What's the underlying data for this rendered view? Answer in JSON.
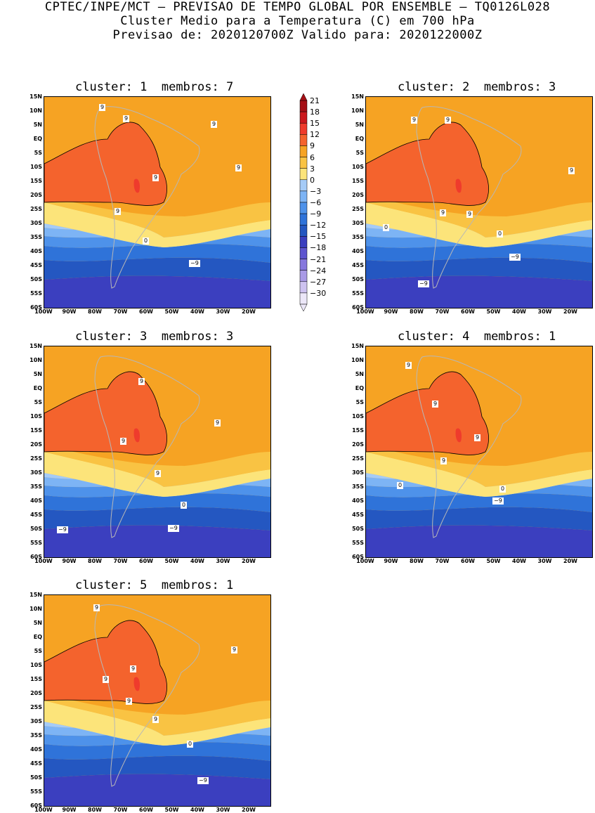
{
  "header": {
    "line1": "CPTEC/INPE/MCT — PREVISAO DE TEMPO GLOBAL POR ENSEMBLE — TQ0126L028",
    "line2": "Cluster Medio para a Temperatura (C) em 700 hPa",
    "line3": "Previsao de: 2020120700Z   Valido para: 2020122000Z"
  },
  "axes": {
    "y_ticks": [
      "15N",
      "10N",
      "5N",
      "EQ",
      "5S",
      "10S",
      "15S",
      "20S",
      "25S",
      "30S",
      "35S",
      "40S",
      "45S",
      "50S",
      "55S",
      "60S"
    ],
    "x_ticks": [
      "100W",
      "90W",
      "80W",
      "70W",
      "60W",
      "50W",
      "40W",
      "30W",
      "20W"
    ]
  },
  "colorbar": {
    "labels": [
      "21",
      "18",
      "15",
      "12",
      "9",
      "6",
      "3",
      "0",
      "−3",
      "−6",
      "−9",
      "−12",
      "−15",
      "−18",
      "−21",
      "−24",
      "−27",
      "−30"
    ],
    "colors": [
      "#a50f15",
      "#cb181d",
      "#ef3b2c",
      "#f4632d",
      "#f6a323",
      "#f9c343",
      "#fce47a",
      "#a5cbf7",
      "#7db4f5",
      "#4e92ea",
      "#2f73d9",
      "#2457c1",
      "#3b3fbf",
      "#5e55cf",
      "#8677dd",
      "#a99ae6",
      "#cdc2f0",
      "#ece7f8"
    ]
  },
  "panels": [
    {
      "cluster_label": "cluster: 1",
      "members_label": "membros: 7",
      "contour_labels": [
        "9",
        "9",
        "9",
        "9",
        "9",
        "9",
        "0",
        "−9"
      ]
    },
    {
      "cluster_label": "cluster: 2",
      "members_label": "membros: 3",
      "contour_labels": [
        "9",
        "9",
        "9",
        "9",
        "9",
        "0",
        "0",
        "−9",
        "−9"
      ]
    },
    {
      "cluster_label": "cluster: 3",
      "members_label": "membros: 3",
      "contour_labels": [
        "9",
        "9",
        "9",
        "9",
        "0",
        "−9",
        "−9"
      ]
    },
    {
      "cluster_label": "cluster: 4",
      "members_label": "membros: 1",
      "contour_labels": [
        "9",
        "9",
        "9",
        "9",
        "0",
        "0",
        "−9"
      ]
    },
    {
      "cluster_label": "cluster: 5",
      "members_label": "membros: 1",
      "contour_labels": [
        "9",
        "9",
        "9",
        "9",
        "9",
        "9",
        "0",
        "−9"
      ]
    }
  ]
}
